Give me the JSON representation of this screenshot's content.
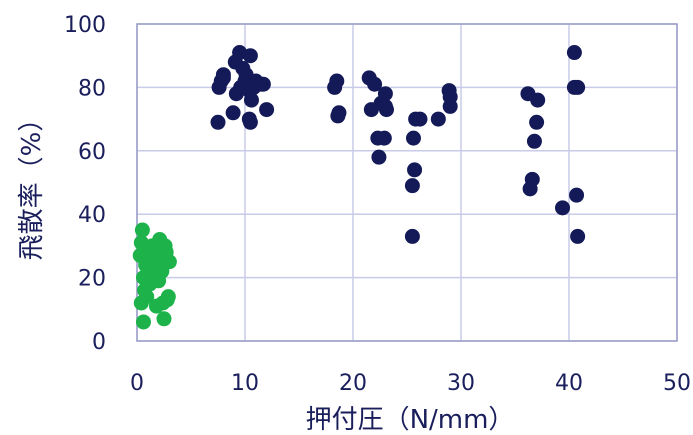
{
  "chart_data": {
    "type": "scatter",
    "xlabel": "押付圧（N/mm）",
    "ylabel": "飛散率（%）",
    "xlim": [
      0,
      50
    ],
    "ylim": [
      0,
      100
    ],
    "xticks": [
      "0",
      "10",
      "20",
      "30",
      "40",
      "50"
    ],
    "yticks": [
      "0",
      "20",
      "40",
      "60",
      "80",
      "100"
    ],
    "grid": true,
    "legend": "none",
    "series": [
      {
        "color": "#141a57",
        "points": [
          [
            7.5,
            69
          ],
          [
            7.6,
            80
          ],
          [
            7.8,
            82
          ],
          [
            8,
            84
          ],
          [
            8,
            83
          ],
          [
            8.9,
            72
          ],
          [
            9.1,
            88
          ],
          [
            9.2,
            78
          ],
          [
            9.5,
            91
          ],
          [
            9.6,
            80
          ],
          [
            9.8,
            86
          ],
          [
            10,
            82
          ],
          [
            10.1,
            84
          ],
          [
            10.2,
            83
          ],
          [
            10.4,
            79
          ],
          [
            10.4,
            70
          ],
          [
            10.5,
            90
          ],
          [
            10.5,
            69
          ],
          [
            10.6,
            76
          ],
          [
            10.8,
            80
          ],
          [
            11,
            82
          ],
          [
            11.5,
            81
          ],
          [
            11.7,
            81
          ],
          [
            12,
            73
          ],
          [
            18.3,
            80
          ],
          [
            18.5,
            82
          ],
          [
            18.6,
            71
          ],
          [
            18.7,
            72
          ],
          [
            21.5,
            83
          ],
          [
            21.7,
            73
          ],
          [
            22,
            81
          ],
          [
            22.3,
            64
          ],
          [
            22.4,
            58
          ],
          [
            22.6,
            75
          ],
          [
            22.9,
            64
          ],
          [
            23,
            78
          ],
          [
            23,
            74
          ],
          [
            23.1,
            73
          ],
          [
            25.5,
            49
          ],
          [
            25.5,
            33
          ],
          [
            25.6,
            64
          ],
          [
            25.7,
            54
          ],
          [
            25.8,
            70
          ],
          [
            26.2,
            70
          ],
          [
            27.9,
            70
          ],
          [
            28.9,
            79
          ],
          [
            29,
            77
          ],
          [
            29,
            74
          ],
          [
            36.2,
            78
          ],
          [
            36.4,
            48
          ],
          [
            36.6,
            51
          ],
          [
            36.8,
            63
          ],
          [
            37,
            69
          ],
          [
            37.1,
            76
          ],
          [
            39.4,
            42
          ],
          [
            40.5,
            91
          ],
          [
            40.5,
            80
          ],
          [
            40.7,
            46
          ],
          [
            40.8,
            33
          ],
          [
            40.8,
            80
          ]
        ]
      },
      {
        "color": "#1db34a",
        "points": [
          [
            0.3,
            27
          ],
          [
            0.4,
            31
          ],
          [
            0.4,
            12
          ],
          [
            0.5,
            35
          ],
          [
            0.6,
            6
          ],
          [
            0.6,
            20
          ],
          [
            0.7,
            16
          ],
          [
            0.8,
            24
          ],
          [
            0.9,
            14
          ],
          [
            1,
            29
          ],
          [
            1,
            26
          ],
          [
            1.1,
            22
          ],
          [
            1.2,
            18
          ],
          [
            1.3,
            25
          ],
          [
            1.4,
            30
          ],
          [
            1.5,
            27
          ],
          [
            1.6,
            28
          ],
          [
            1.7,
            21
          ],
          [
            1.8,
            11
          ],
          [
            1.9,
            24
          ],
          [
            2,
            19
          ],
          [
            2,
            29
          ],
          [
            2.1,
            32
          ],
          [
            2.2,
            27
          ],
          [
            2.3,
            25
          ],
          [
            2.3,
            22
          ],
          [
            2.4,
            12
          ],
          [
            2.5,
            7
          ],
          [
            2.6,
            30
          ],
          [
            2.7,
            28
          ],
          [
            2.8,
            13
          ],
          [
            2.9,
            14
          ],
          [
            3,
            25
          ]
        ]
      }
    ]
  }
}
